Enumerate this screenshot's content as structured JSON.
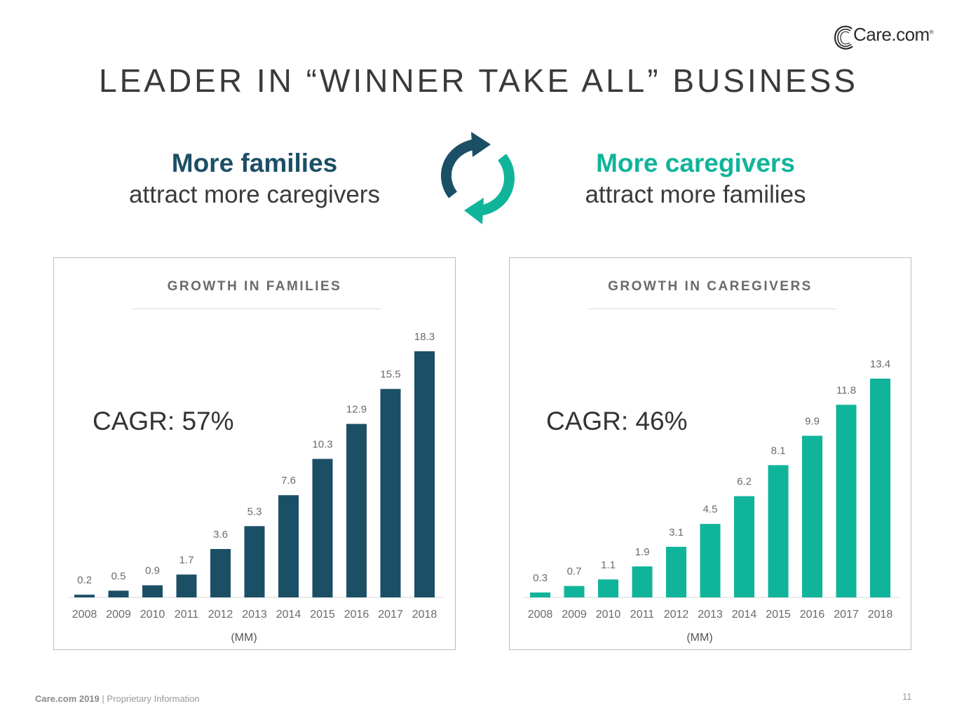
{
  "logo": {
    "text": "Care.com",
    "mark": "®"
  },
  "title": "LEADER IN “WINNER TAKE ALL” BUSINESS",
  "left_heading": {
    "bold": "More families",
    "sub": "attract more caregivers"
  },
  "right_heading": {
    "bold": "More caregivers",
    "sub": "attract more families"
  },
  "icons": {
    "cycle": "refresh-cycle-icon"
  },
  "colors": {
    "families": "#1b4f66",
    "caregivers": "#10b49a"
  },
  "chart_data": [
    {
      "type": "bar",
      "title": "GROWTH IN FAMILIES",
      "annotation": "CAGR: 57%",
      "xlabel": "(MM)",
      "categories": [
        "2008",
        "2009",
        "2010",
        "2011",
        "2012",
        "2013",
        "2014",
        "2015",
        "2016",
        "2017",
        "2018"
      ],
      "values": [
        0.2,
        0.5,
        0.9,
        1.7,
        3.6,
        5.3,
        7.6,
        10.3,
        12.9,
        15.5,
        18.3
      ],
      "value_labels": [
        "0.2",
        "0.5",
        "0.9",
        "1.7",
        "3.6",
        "5.3",
        "7.6",
        "10.3",
        "12.9",
        "15.5",
        "18.3"
      ],
      "color": "#1b4f66",
      "grid": false,
      "legend": "none"
    },
    {
      "type": "bar",
      "title": "GROWTH IN CAREGIVERS",
      "annotation": "CAGR: 46%",
      "xlabel": "(MM)",
      "categories": [
        "2008",
        "2009",
        "2010",
        "2011",
        "2012",
        "2013",
        "2014",
        "2015",
        "2016",
        "2017",
        "2018"
      ],
      "values": [
        0.3,
        0.7,
        1.1,
        1.9,
        3.1,
        4.5,
        6.2,
        8.1,
        9.9,
        11.8,
        13.4
      ],
      "value_labels": [
        "0.3",
        "0.7",
        "1.1",
        "1.9",
        "3.1",
        "4.5",
        "6.2",
        "8.1",
        "9.9",
        "11.8",
        "13.4"
      ],
      "color": "#10b49a",
      "grid": false,
      "legend": "none"
    }
  ],
  "footer": {
    "company": "Care.com 2019",
    "separator": "|",
    "note": "Proprietary Information",
    "page": "11"
  }
}
